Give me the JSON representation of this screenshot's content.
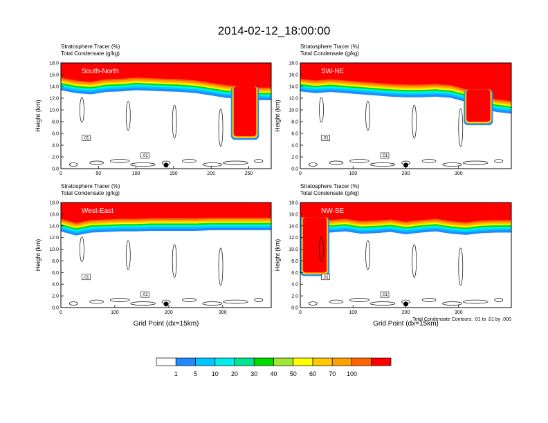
{
  "figure": {
    "title": "2014-02-12_18:00:00",
    "x_axis_label": "Grid Point (dx=15km)",
    "contour_note": "Total Condensate Contours: .01 to .01 by .000",
    "contour_label": ".01"
  },
  "colorbar": {
    "labels": [
      "1",
      "5",
      "10",
      "20",
      "30",
      "40",
      "50",
      "60",
      "70",
      "100"
    ],
    "colors": [
      "#ffffff",
      "#1e8cff",
      "#00c8ff",
      "#00eeee",
      "#00e696",
      "#00dc00",
      "#a0e632",
      "#ffff00",
      "#ffc800",
      "#ffa000",
      "#ff6400",
      "#ff0000"
    ]
  },
  "chart_data": [
    {
      "type": "heatmap",
      "panel": "South-North",
      "subtitle_left": "Stratosphere Tracer   (%)",
      "subtitle_left2": "Total Condensate   (g/kg)",
      "xlabel": "",
      "ylabel": "Height (km)",
      "xlim": [
        0,
        280
      ],
      "ylim": [
        0,
        18
      ],
      "x_ticks": [
        0,
        50,
        100,
        150,
        200,
        250
      ],
      "y_ticks": [
        0.0,
        2.0,
        4.0,
        6.0,
        8.0,
        10.0,
        12.0,
        14.0,
        16.0,
        18.0
      ],
      "tropopause_km": [
        15.5,
        15.0,
        14.8,
        15.2,
        15.3,
        15.5,
        15.4,
        15.3,
        15.2,
        15.0,
        14.6,
        14.2,
        14.0,
        13.8,
        13.8
      ],
      "intrusion": {
        "x_range": [
          230,
          260
        ],
        "bottom_km": 5.5
      },
      "marker_x": 140
    },
    {
      "type": "heatmap",
      "panel": "SW-NE",
      "subtitle_left": "Stratosphere Tracer   (%)",
      "subtitle_left2": "Total Condensate   (g/kg)",
      "xlabel": "",
      "ylabel": "Height (km)",
      "xlim": [
        0,
        400
      ],
      "ylim": [
        0,
        18
      ],
      "x_ticks": [
        0,
        100,
        200,
        300
      ],
      "y_ticks": [
        0.0,
        2.0,
        4.0,
        6.0,
        8.0,
        10.0,
        12.0,
        14.0,
        16.0,
        18.0
      ],
      "tropopause_km": [
        15.3,
        15.0,
        15.2,
        15.0,
        14.8,
        14.6,
        14.4,
        14.3,
        14.3,
        14.4,
        14.2,
        13.5,
        12.5,
        11.8,
        11.5
      ],
      "intrusion": {
        "x_range": [
          315,
          360
        ],
        "bottom_km": 8.0
      },
      "marker_x": 200
    },
    {
      "type": "heatmap",
      "panel": "West-East",
      "subtitle_left": "Stratosphere Tracer   (%)",
      "subtitle_left2": "Total Condensate   (g/kg)",
      "xlabel": "Grid Point (dx=15km)",
      "ylabel": "Height (km)",
      "xlim": [
        0,
        390
      ],
      "ylim": [
        0,
        18
      ],
      "x_ticks": [
        0,
        100,
        200,
        300
      ],
      "y_ticks": [
        0.0,
        2.0,
        4.0,
        6.0,
        8.0,
        10.0,
        12.0,
        14.0,
        16.0,
        18.0
      ],
      "tropopause_km": [
        15.2,
        14.5,
        15.0,
        15.1,
        15.2,
        15.2,
        15.3,
        15.3,
        15.3,
        15.3,
        15.4,
        15.4,
        15.4,
        15.4,
        15.4
      ],
      "intrusion": null,
      "marker_x": 195
    },
    {
      "type": "heatmap",
      "panel": "NW-SE",
      "subtitle_left": "Stratosphere Tracer   (%)",
      "subtitle_left2": "Total Condensate   (g/kg)",
      "xlabel": "Grid Point (dx=15km)",
      "ylabel": "Height (km)",
      "xlim": [
        0,
        400
      ],
      "ylim": [
        0,
        18
      ],
      "x_ticks": [
        0,
        100,
        200,
        300
      ],
      "y_ticks": [
        0.0,
        2.0,
        4.0,
        6.0,
        8.0,
        10.0,
        12.0,
        14.0,
        16.0,
        18.0
      ],
      "tropopause_km": [
        15.5,
        15.3,
        15.0,
        15.2,
        14.8,
        14.9,
        15.1,
        14.7,
        15.0,
        15.2,
        14.8,
        14.6,
        14.9,
        15.0,
        15.0
      ],
      "intrusion": {
        "x_range": [
          5,
          50
        ],
        "bottom_km": 6.0
      },
      "marker_x": 200
    }
  ]
}
